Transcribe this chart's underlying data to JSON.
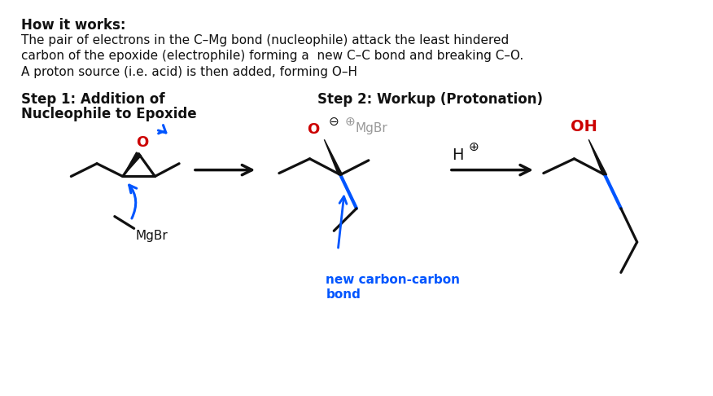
{
  "background_color": "#ffffff",
  "title_bold": "How it works:",
  "description_lines": [
    "The pair of electrons in the C–Mg bond (nucleophile) attack the least hindered",
    "carbon of the epoxide (electrophile) forming a  new C–C bond and breaking C–O.",
    "A proton source (i.e. acid) is then added, forming O–H"
  ],
  "step1_label": "Step 1: Addition of\nNucleophile to Epoxide",
  "step2_label": "Step 2: Workup (Protonation)",
  "annotation_label": "new carbon-carbon\nbond",
  "annotation_color": "#0055ff",
  "red_color": "#cc0000",
  "blue_color": "#0055ff",
  "gray_color": "#999999",
  "black_color": "#111111"
}
